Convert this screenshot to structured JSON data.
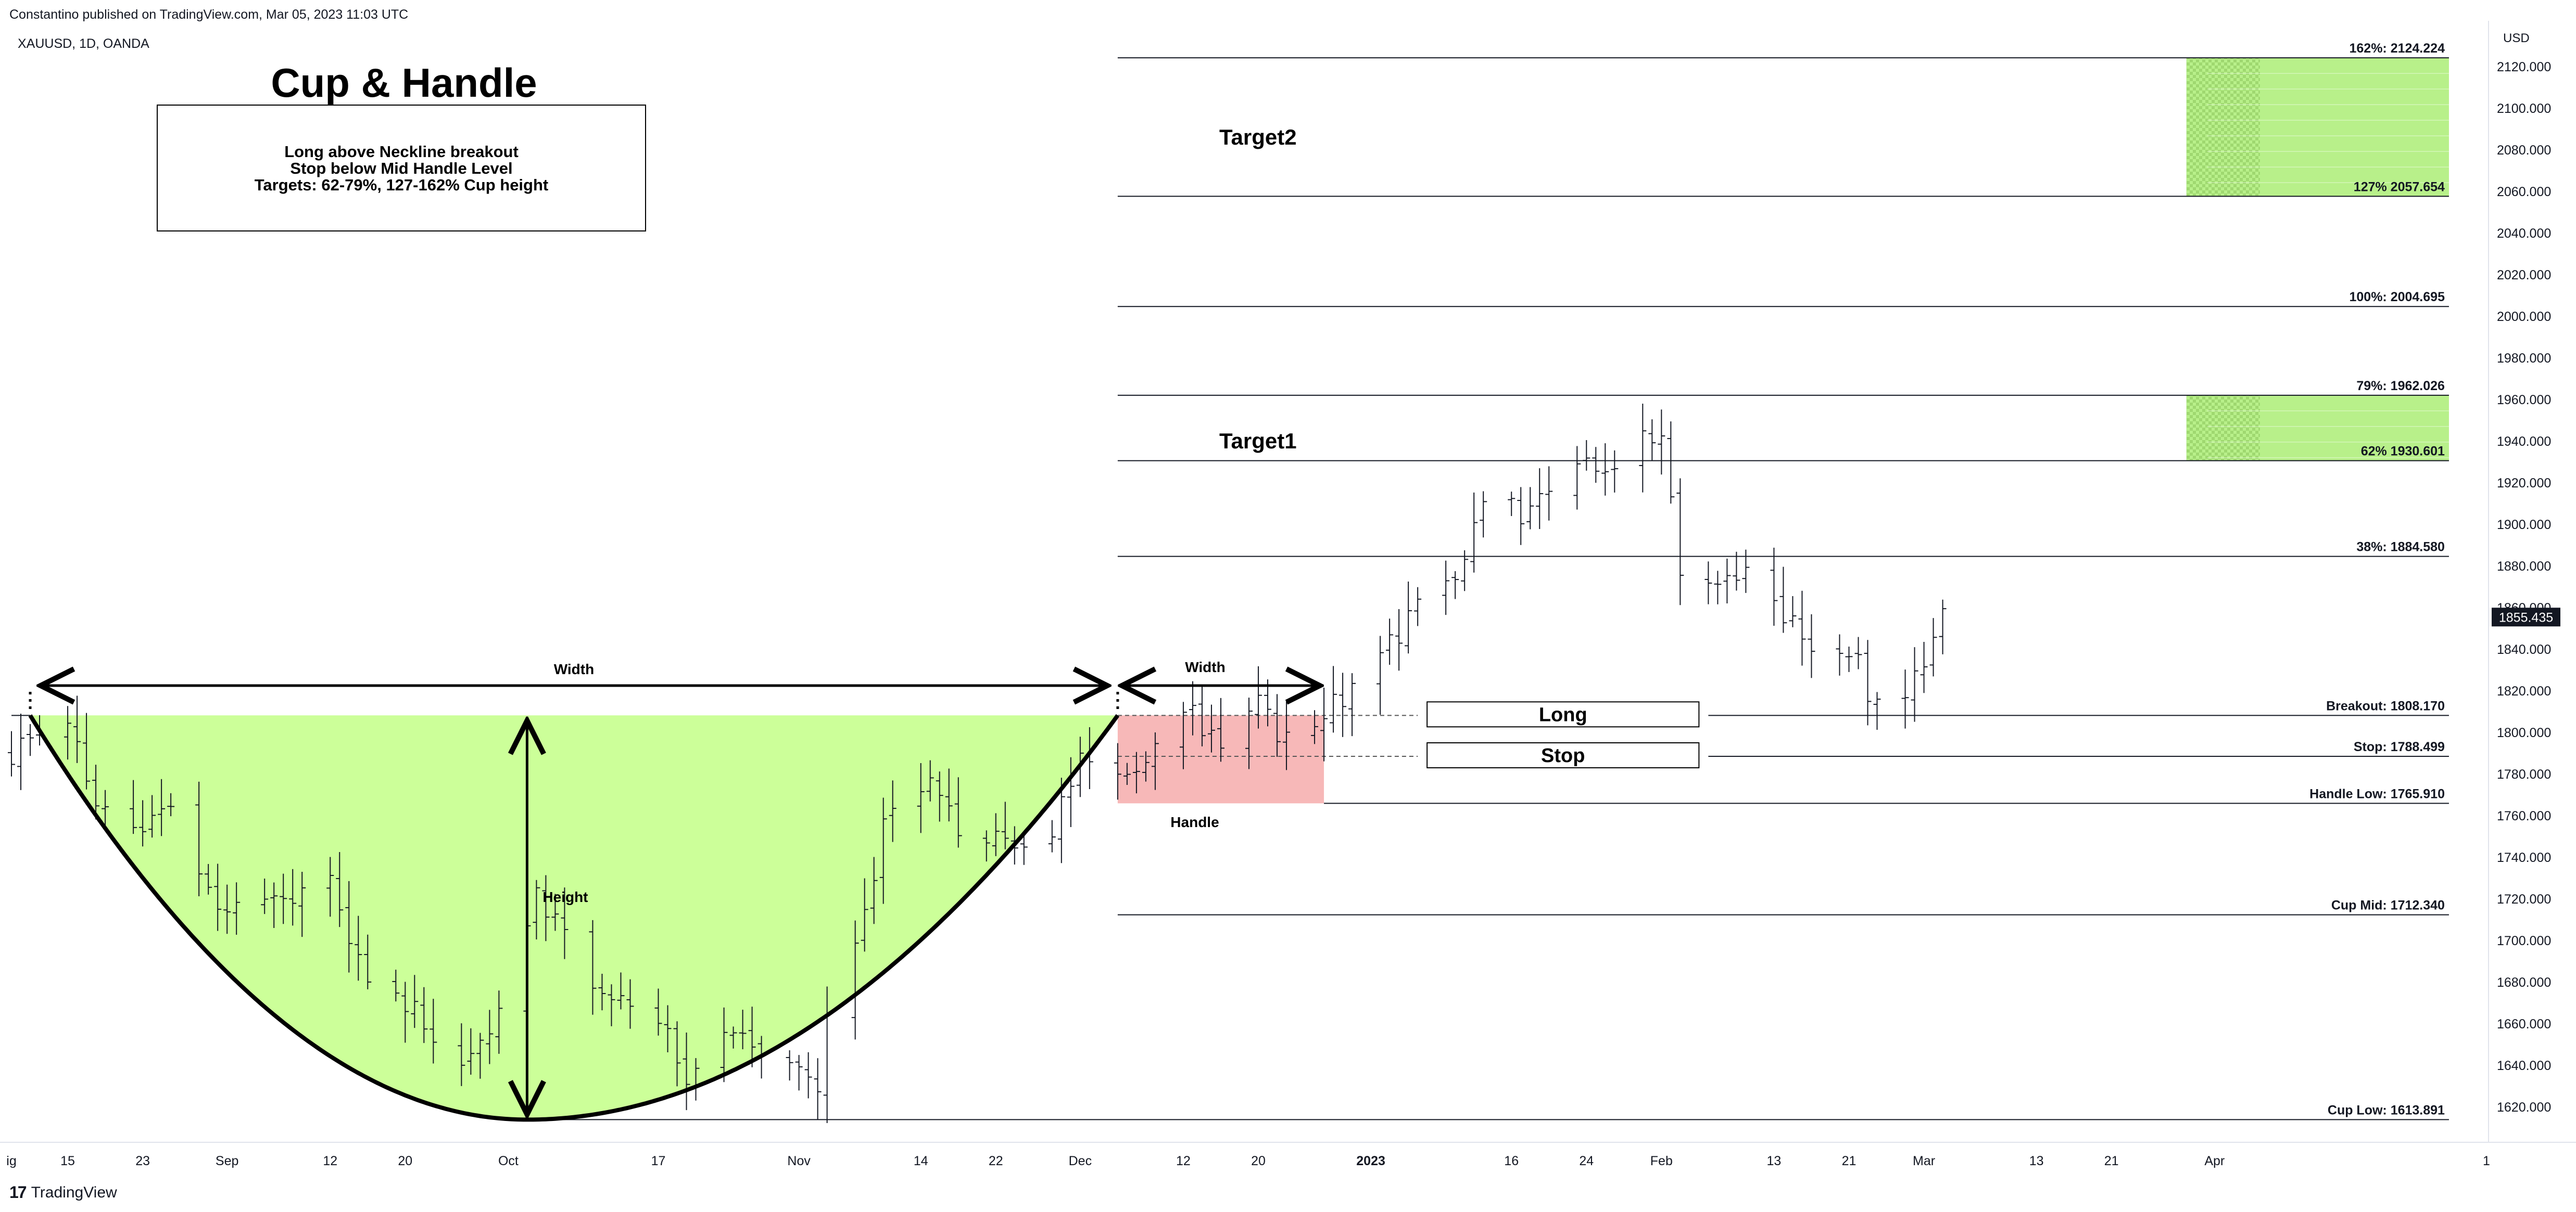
{
  "header": {
    "published": "Constantino published on TradingView.com, Mar 05, 2023 11:03 UTC",
    "symbol": "XAUUSD, 1D, OANDA",
    "currency": "USD",
    "brand": "TradingView",
    "brand_mark": "17"
  },
  "chart_data": {
    "type": "ohlc",
    "title": "Cup & Handle",
    "note_lines": [
      "Long above Neckline breakout",
      "Stop below Mid Handle Level",
      "Targets: 62-79%, 127-162% Cup height"
    ],
    "y_axis": {
      "ylim": [
        1610,
        2135
      ],
      "ticks": [
        "1620.000",
        "1640.000",
        "1660.000",
        "1680.000",
        "1700.000",
        "1720.000",
        "1740.000",
        "1760.000",
        "1780.000",
        "1800.000",
        "1820.000",
        "1840.000",
        "1860.000",
        "1880.000",
        "1900.000",
        "1920.000",
        "1940.000",
        "1960.000",
        "1980.000",
        "2000.000",
        "2020.000",
        "2040.000",
        "2060.000",
        "2080.000",
        "2100.000",
        "2120.000"
      ],
      "last_price": 1855.435,
      "last_price_label": "1855.435"
    },
    "x_axis": {
      "start": "2022-08-09",
      "end": "2023-04-30",
      "ticks": [
        {
          "date": "2022-08-09",
          "label": "ig"
        },
        {
          "date": "2022-08-15",
          "label": "15"
        },
        {
          "date": "2022-08-23",
          "label": "23"
        },
        {
          "date": "2022-09-01",
          "label": "Sep"
        },
        {
          "date": "2022-09-12",
          "label": "12"
        },
        {
          "date": "2022-09-20",
          "label": "20"
        },
        {
          "date": "2022-10-01",
          "label": "Oct"
        },
        {
          "date": "2022-10-17",
          "label": "17"
        },
        {
          "date": "2022-11-01",
          "label": "Nov"
        },
        {
          "date": "2022-11-14",
          "label": "14"
        },
        {
          "date": "2022-11-22",
          "label": "22"
        },
        {
          "date": "2022-12-01",
          "label": "Dec"
        },
        {
          "date": "2022-12-12",
          "label": "12"
        },
        {
          "date": "2022-12-20",
          "label": "20"
        },
        {
          "date": "2023-01-01",
          "label": "2023",
          "bold": true
        },
        {
          "date": "2023-01-16",
          "label": "16"
        },
        {
          "date": "2023-01-24",
          "label": "24"
        },
        {
          "date": "2023-02-01",
          "label": "Feb"
        },
        {
          "date": "2023-02-13",
          "label": "13"
        },
        {
          "date": "2023-02-21",
          "label": "21"
        },
        {
          "date": "2023-03-01",
          "label": "Mar"
        },
        {
          "date": "2023-03-13",
          "label": "13"
        },
        {
          "date": "2023-03-21",
          "label": "21"
        },
        {
          "date": "2023-04-01",
          "label": "Apr"
        },
        {
          "date": "2023-04-30",
          "label": "1"
        }
      ]
    },
    "waypoints": [
      [
        "2022-08-09",
        1790
      ],
      [
        "2022-08-12",
        1800
      ],
      [
        "2022-08-15",
        1805
      ],
      [
        "2022-08-18",
        1770
      ],
      [
        "2022-08-23",
        1750
      ],
      [
        "2022-08-26",
        1760
      ],
      [
        "2022-09-01",
        1712
      ],
      [
        "2022-09-07",
        1715
      ],
      [
        "2022-09-12",
        1725
      ],
      [
        "2022-09-15",
        1690
      ],
      [
        "2022-09-20",
        1670
      ],
      [
        "2022-09-26",
        1635
      ],
      [
        "2022-09-29",
        1660
      ],
      [
        "2022-10-04",
        1720
      ],
      [
        "2022-10-07",
        1705
      ],
      [
        "2022-10-10",
        1680
      ],
      [
        "2022-10-17",
        1660
      ],
      [
        "2022-10-20",
        1635
      ],
      [
        "2022-10-25",
        1655
      ],
      [
        "2022-10-28",
        1645
      ],
      [
        "2022-11-01",
        1640
      ],
      [
        "2022-11-03",
        1630
      ],
      [
        "2022-11-04",
        1670
      ],
      [
        "2022-11-08",
        1715
      ],
      [
        "2022-11-10",
        1755
      ],
      [
        "2022-11-15",
        1775
      ],
      [
        "2022-11-18",
        1755
      ],
      [
        "2022-11-23",
        1745
      ],
      [
        "2022-11-28",
        1755
      ],
      [
        "2022-12-01",
        1790
      ],
      [
        "2022-12-05",
        1775
      ],
      [
        "2022-12-08",
        1790
      ],
      [
        "2022-12-13",
        1810
      ],
      [
        "2022-12-16",
        1790
      ],
      [
        "2022-12-20",
        1815
      ],
      [
        "2022-12-23",
        1795
      ],
      [
        "2022-12-28",
        1812
      ],
      [
        "2023-01-03",
        1840
      ],
      [
        "2023-01-06",
        1862
      ],
      [
        "2023-01-10",
        1877
      ],
      [
        "2023-01-13",
        1915
      ],
      [
        "2023-01-18",
        1905
      ],
      [
        "2023-01-24",
        1932
      ],
      [
        "2023-01-27",
        1926
      ],
      [
        "2023-02-01",
        1948
      ],
      [
        "2023-02-03",
        1870
      ],
      [
        "2023-02-06",
        1868
      ],
      [
        "2023-02-09",
        1880
      ],
      [
        "2023-02-14",
        1855
      ],
      [
        "2023-02-17",
        1840
      ],
      [
        "2023-02-21",
        1840
      ],
      [
        "2023-02-24",
        1812
      ],
      [
        "2023-02-28",
        1827
      ],
      [
        "2023-03-03",
        1855
      ]
    ],
    "cup": {
      "left": [
        "2022-08-11",
        1808.17
      ],
      "bottom": [
        "2022-10-03",
        1613.891
      ],
      "right": [
        "2022-12-05",
        1808.17
      ]
    },
    "handle_box": {
      "from": "2022-12-05",
      "to": "2022-12-27",
      "top": 1808.17,
      "bottom": 1765.91
    },
    "target_zones": [
      {
        "label": "Target2",
        "from": "2023-03-29",
        "to": "2023-04-26",
        "top": 2124.224,
        "bottom": 2057.654
      },
      {
        "label": "Target1",
        "from": "2023-03-29",
        "to": "2023-04-26",
        "top": 1962.026,
        "bottom": 1930.601
      }
    ],
    "levels": [
      {
        "label": "162%: 2124.224",
        "value": 2124.224,
        "from": "2022-12-05",
        "to": "2023-04-26"
      },
      {
        "label": "127% 2057.654",
        "value": 2057.654,
        "from": "2022-12-05",
        "to": "2023-04-26"
      },
      {
        "label": "100%: 2004.695",
        "value": 2004.695,
        "from": "2022-12-05",
        "to": "2023-04-26"
      },
      {
        "label": "79%: 1962.026",
        "value": 1962.026,
        "from": "2022-12-05",
        "to": "2023-04-26"
      },
      {
        "label": "62% 1930.601",
        "value": 1930.601,
        "from": "2022-12-05",
        "to": "2023-04-26"
      },
      {
        "label": "38%: 1884.580",
        "value": 1884.58,
        "from": "2022-12-05",
        "to": "2023-04-26"
      },
      {
        "label": "Breakout: 1808.170",
        "value": 1808.17,
        "from": "2023-02-06",
        "to": "2023-04-26"
      },
      {
        "label": "Stop: 1788.499",
        "value": 1788.499,
        "from": "2023-02-06",
        "to": "2023-04-26"
      },
      {
        "label": "Handle Low: 1765.910",
        "value": 1765.91,
        "from": "2022-12-27",
        "to": "2023-04-26"
      },
      {
        "label": "Cup Mid: 1712.340",
        "value": 1712.34,
        "from": "2022-12-05",
        "to": "2023-04-26"
      },
      {
        "label": "Cup Low: 1613.891",
        "value": 1613.891,
        "from": "2022-10-01",
        "to": "2023-04-26"
      }
    ],
    "annotations": {
      "cup_width": "Width",
      "cup_height": "Height",
      "handle_width": "Width",
      "handle": "Handle",
      "long": "Long",
      "stop": "Stop"
    },
    "colors": {
      "cup_fill": "#ccff99",
      "handle_fill": "#f7b8b8",
      "zone_fill": "#b8f08a",
      "bars": "#131722",
      "last_price_bg": "#131722"
    }
  }
}
